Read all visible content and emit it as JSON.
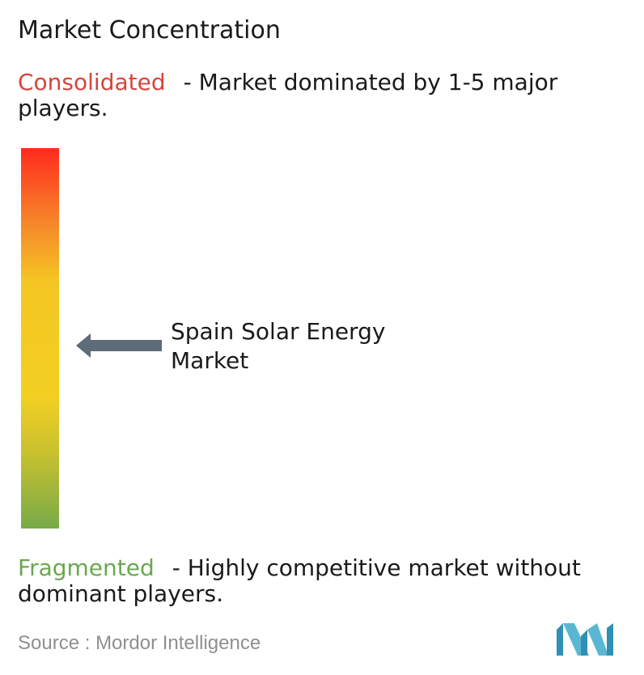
{
  "title": "Market Concentration",
  "consolidated": {
    "label": "Consolidated",
    "description": "- Market dominated by 1-5 major players.",
    "color": "#d9443b"
  },
  "fragmented": {
    "label": "Fragmented",
    "description": "- Highly competitive market without dominant players.",
    "color": "#6aa84f"
  },
  "gradient_colors": [
    "#ff2a1e",
    "#f5882a",
    "#f5c623",
    "#f3cf22",
    "#c9c12f",
    "#77aa49"
  ],
  "market_label": "Spain Solar Energy Market",
  "arrow_color": "#5e6b78",
  "source": {
    "label": "Source :",
    "name": "Mordor Intelligence"
  },
  "logo_color": "#4fa3c4"
}
